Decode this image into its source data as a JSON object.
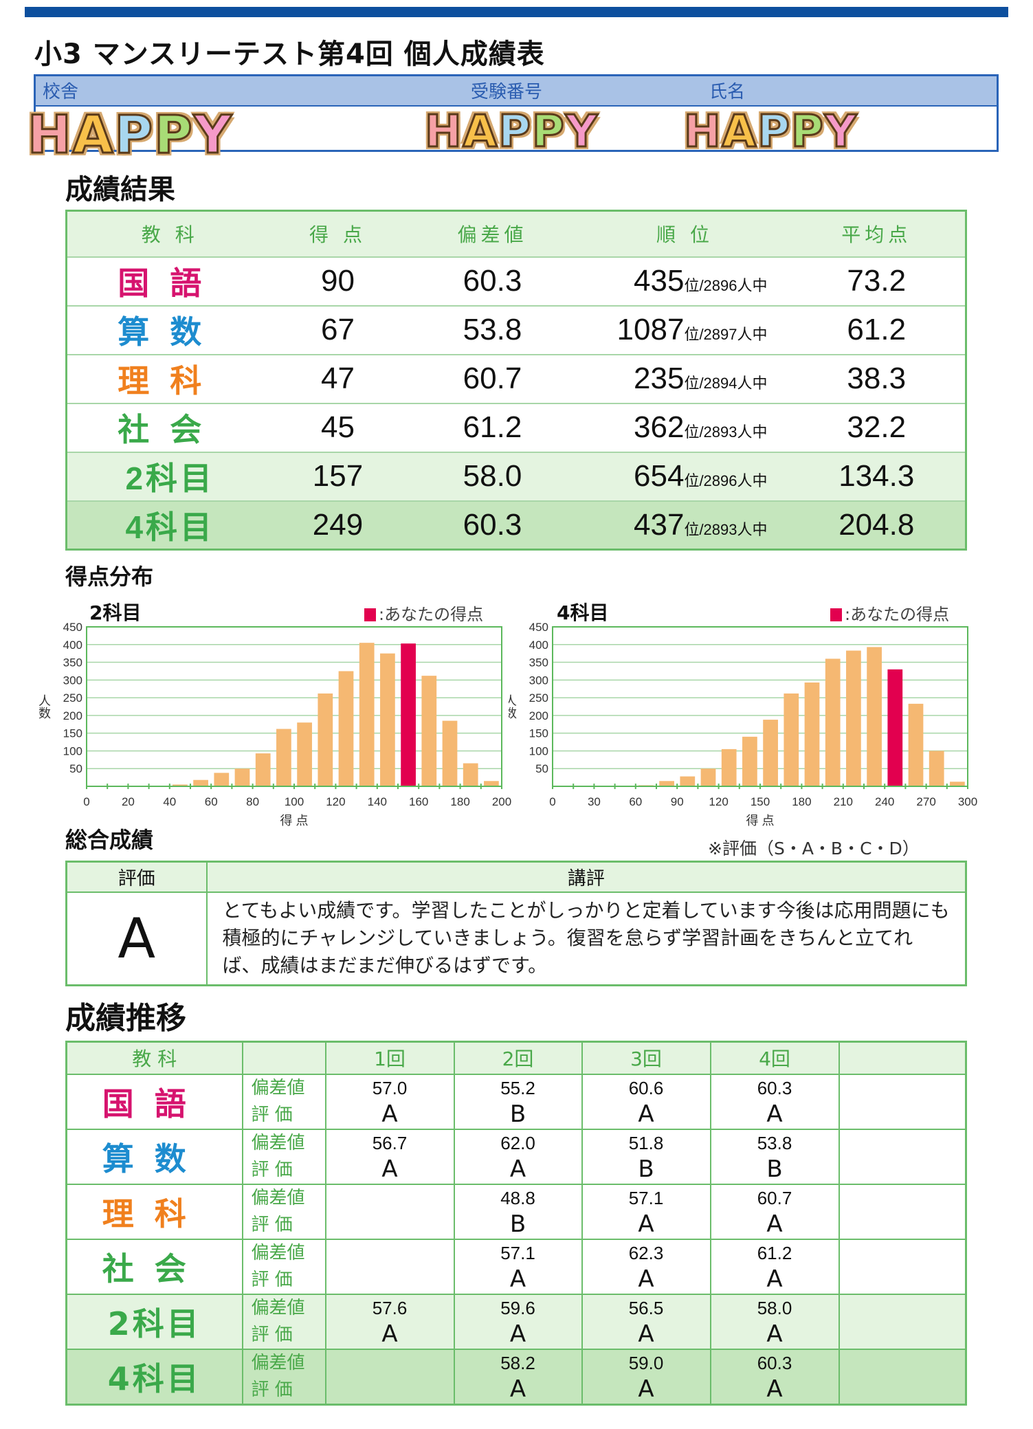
{
  "title": "小3 マンスリーテスト第4回 個人成績表",
  "info": {
    "labels": [
      "校舎",
      "受験番号",
      "氏名"
    ],
    "stickers": [
      "HAPPY",
      "HAPPY",
      "HAPPY"
    ]
  },
  "results": {
    "heading": "成績結果",
    "columns": [
      "教 科",
      "得 点",
      "偏差値",
      "順 位",
      "平均点"
    ],
    "rows": [
      {
        "subject": "国語",
        "score": "90",
        "dev": "60.3",
        "rank": "435",
        "rank_suffix": "位/2896人中",
        "avg": "73.2"
      },
      {
        "subject": "算数",
        "score": "67",
        "dev": "53.8",
        "rank": "1087",
        "rank_suffix": "位/2897人中",
        "avg": "61.2"
      },
      {
        "subject": "理科",
        "score": "47",
        "dev": "60.7",
        "rank": "235",
        "rank_suffix": "位/2894人中",
        "avg": "38.3"
      },
      {
        "subject": "社会",
        "score": "45",
        "dev": "61.2",
        "rank": "362",
        "rank_suffix": "位/2893人中",
        "avg": "32.2"
      },
      {
        "subject": "2科目",
        "score": "157",
        "dev": "58.0",
        "rank": "654",
        "rank_suffix": "位/2896人中",
        "avg": "134.3"
      },
      {
        "subject": "4科目",
        "score": "249",
        "dev": "60.3",
        "rank": "437",
        "rank_suffix": "位/2893人中",
        "avg": "204.8"
      }
    ]
  },
  "distribution_heading": "得点分布",
  "chart_data": [
    {
      "type": "bar",
      "title": "2科目",
      "legend": ":あなたの得点",
      "xlabel": "得 点",
      "ylabel": "人数",
      "xlim": [
        0,
        200
      ],
      "ylim": [
        0,
        450
      ],
      "bin_width": 10,
      "grid": true,
      "xticks": [
        0,
        20,
        40,
        60,
        80,
        100,
        120,
        140,
        160,
        180,
        200
      ],
      "yticks": [
        50,
        100,
        150,
        200,
        250,
        300,
        350,
        400,
        450
      ],
      "bins": [
        0,
        10,
        20,
        30,
        40,
        50,
        60,
        70,
        80,
        90,
        100,
        110,
        120,
        130,
        140,
        150,
        160,
        170,
        180,
        190
      ],
      "values": [
        0,
        0,
        0,
        0,
        5,
        18,
        38,
        50,
        93,
        162,
        180,
        262,
        325,
        405,
        375,
        403,
        312,
        185,
        65,
        15
      ],
      "highlight_bin": 150,
      "bar_color": "#f5b872",
      "highlight_color": "#e2004f"
    },
    {
      "type": "bar",
      "title": "4科目",
      "legend": ":あなたの得点",
      "xlabel": "得 点",
      "ylabel": "人数",
      "xlim": [
        0,
        300
      ],
      "ylim": [
        0,
        450
      ],
      "bin_width": 15,
      "grid": true,
      "xticks": [
        0,
        30,
        60,
        90,
        120,
        150,
        180,
        210,
        240,
        270,
        300
      ],
      "yticks": [
        50,
        100,
        150,
        200,
        250,
        300,
        350,
        400,
        450
      ],
      "bins": [
        0,
        15,
        30,
        45,
        60,
        75,
        90,
        105,
        120,
        135,
        150,
        165,
        180,
        195,
        210,
        225,
        240,
        255,
        270,
        285
      ],
      "values": [
        0,
        0,
        0,
        0,
        3,
        15,
        28,
        50,
        105,
        140,
        188,
        262,
        293,
        360,
        383,
        393,
        330,
        233,
        100,
        13
      ],
      "highlight_bin": 240,
      "bar_color": "#f5b872",
      "highlight_color": "#e2004f"
    }
  ],
  "overall": {
    "heading": "総合成績",
    "note": "※評価（S・A・B・C・D）",
    "col_grade": "評価",
    "col_comment": "講評",
    "grade": "A",
    "comment": "とてもよい成績です。学習したことがしっかりと定着しています今後は応用問題にも積極的にチャレンジしていきましょう。復習を怠らず学習計画をきちんと立てれば、成績はまだまだ伸びるはずです。"
  },
  "history": {
    "heading": "成績推移",
    "col_subject": "教 科",
    "rounds": [
      "1回",
      "2回",
      "3回",
      "4回",
      ""
    ],
    "label_dev": "偏差値",
    "label_grade": "評 価",
    "rows": [
      {
        "subject": "国語",
        "dev": [
          "57.0",
          "55.2",
          "60.6",
          "60.3",
          ""
        ],
        "grade": [
          "A",
          "B",
          "A",
          "A",
          ""
        ]
      },
      {
        "subject": "算数",
        "dev": [
          "56.7",
          "62.0",
          "51.8",
          "53.8",
          ""
        ],
        "grade": [
          "A",
          "A",
          "B",
          "B",
          ""
        ]
      },
      {
        "subject": "理科",
        "dev": [
          "",
          "48.8",
          "57.1",
          "60.7",
          ""
        ],
        "grade": [
          "",
          "B",
          "A",
          "A",
          ""
        ]
      },
      {
        "subject": "社会",
        "dev": [
          "",
          "57.1",
          "62.3",
          "61.2",
          ""
        ],
        "grade": [
          "",
          "A",
          "A",
          "A",
          ""
        ]
      },
      {
        "subject": "2科目",
        "dev": [
          "57.6",
          "59.6",
          "56.5",
          "58.0",
          ""
        ],
        "grade": [
          "A",
          "A",
          "A",
          "A",
          ""
        ]
      },
      {
        "subject": "4科目",
        "dev": [
          "",
          "58.2",
          "59.0",
          "60.3",
          ""
        ],
        "grade": [
          "",
          "A",
          "A",
          "A",
          ""
        ]
      }
    ]
  }
}
